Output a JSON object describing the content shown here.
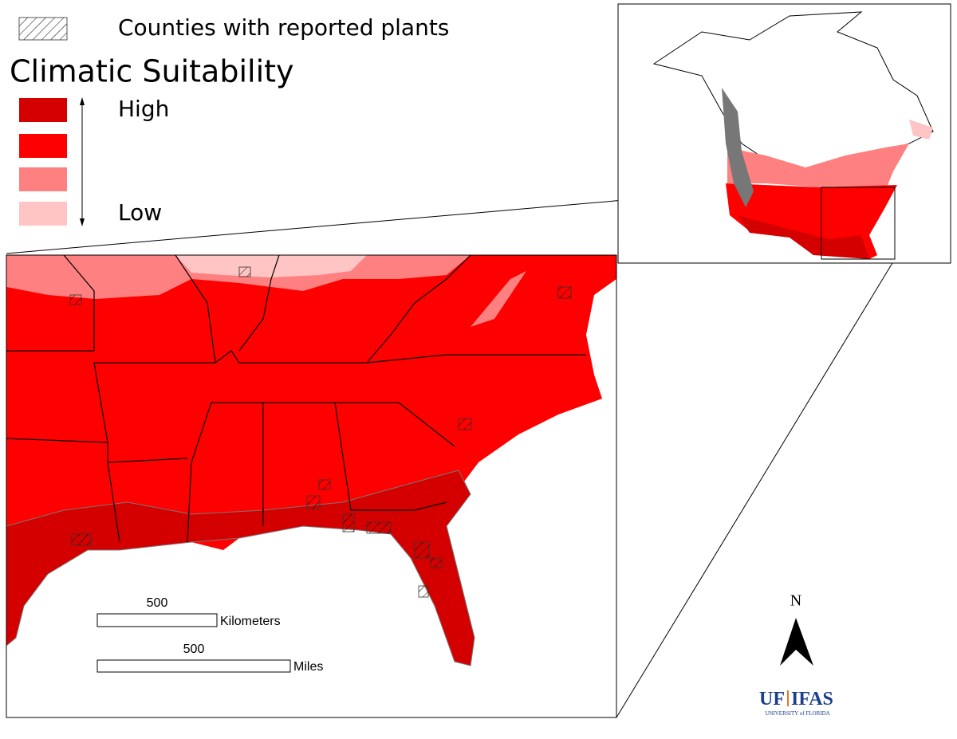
{
  "legend": {
    "hatch_label": "Counties with reported plants",
    "title": "Climatic Suitability",
    "high": "High",
    "low": "Low"
  },
  "scale_bars": [
    {
      "value": 500,
      "unit": "Kilometers"
    },
    {
      "value": 500,
      "unit": "Miles"
    }
  ],
  "north": {
    "label": "N"
  },
  "logo": {
    "primary": "UF",
    "secondary": "IFAS",
    "tagline": "UNIVERSITY of FLORIDA"
  }
}
